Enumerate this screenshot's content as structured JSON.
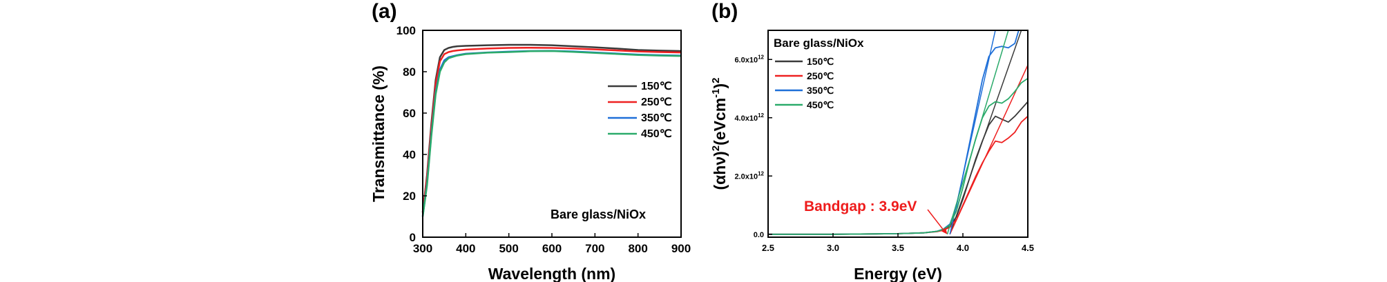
{
  "chart_data": [
    {
      "type": "line",
      "panel_label": "(a)",
      "xlabel": "Wavelength (nm)",
      "ylabel": "Transmittance (%)",
      "xlim": [
        300,
        900
      ],
      "ylim": [
        0,
        100
      ],
      "x_ticks": [
        300,
        400,
        500,
        600,
        700,
        800,
        900
      ],
      "y_ticks": [
        0,
        20,
        40,
        60,
        80,
        100
      ],
      "grid": false,
      "legend_position": "right",
      "annotation": "Bare glass/NiOx",
      "series": [
        {
          "name": "150℃",
          "color": "#3a3a3a",
          "x": [
            300,
            310,
            320,
            330,
            340,
            350,
            360,
            370,
            380,
            400,
            450,
            500,
            550,
            600,
            650,
            700,
            750,
            800,
            850,
            900
          ],
          "y": [
            12,
            30,
            55,
            76,
            87,
            90.5,
            91.5,
            92,
            92.3,
            92.5,
            92.8,
            93,
            93,
            92.8,
            92.3,
            91.8,
            91.2,
            90.5,
            90.2,
            90
          ]
        },
        {
          "name": "250℃",
          "color": "#ee2020",
          "x": [
            300,
            310,
            320,
            330,
            340,
            350,
            360,
            370,
            380,
            400,
            450,
            500,
            550,
            600,
            650,
            700,
            750,
            800,
            850,
            900
          ],
          "y": [
            12,
            29,
            53,
            74,
            85,
            88.5,
            89.5,
            90,
            90.3,
            90.7,
            91.2,
            91.5,
            91.6,
            91.5,
            91.2,
            90.8,
            90.3,
            89.8,
            89.5,
            89.3
          ]
        },
        {
          "name": "350℃",
          "color": "#1e6fd8",
          "x": [
            300,
            310,
            320,
            330,
            340,
            350,
            360,
            370,
            380,
            400,
            450,
            500,
            550,
            600,
            650,
            700,
            750,
            800,
            850,
            900
          ],
          "y": [
            10,
            26,
            50,
            70,
            81,
            85.5,
            87,
            87.5,
            88,
            88.7,
            89.3,
            89.7,
            90,
            90.1,
            89.8,
            89.3,
            88.8,
            88.3,
            88,
            87.8
          ]
        },
        {
          "name": "450℃",
          "color": "#2aaa6a",
          "x": [
            300,
            310,
            320,
            330,
            340,
            350,
            360,
            370,
            380,
            400,
            450,
            500,
            550,
            600,
            650,
            700,
            750,
            800,
            850,
            900
          ],
          "y": [
            10,
            25,
            49,
            69,
            80,
            84.5,
            86.5,
            87.2,
            87.8,
            88.5,
            89.2,
            89.5,
            89.9,
            90,
            89.6,
            89.1,
            88.6,
            88.1,
            87.8,
            87.6
          ]
        }
      ]
    },
    {
      "type": "line",
      "panel_label": "(b)",
      "xlabel": "Energy (eV)",
      "ylabel": "(αhν)²(eVcm⁻¹)²",
      "ylabel_parts": {
        "a": "(αhν)",
        "b": "2",
        "c": "(eVcm",
        "d": "-1",
        "e": ")",
        "f": "2"
      },
      "xlim": [
        2.5,
        4.5
      ],
      "ylim": [
        -100000000000.0,
        7000000000000.0
      ],
      "x_ticks": [
        2.5,
        3.0,
        3.5,
        4.0,
        4.5
      ],
      "y_ticks": [
        0,
        2000000000000.0,
        4000000000000.0,
        6000000000000.0
      ],
      "y_tick_labels": [
        {
          "value": 0,
          "base": "0.0",
          "exp": ""
        },
        {
          "value": 2000000000000.0,
          "base": "2.0x10",
          "exp": "12"
        },
        {
          "value": 4000000000000.0,
          "base": "4.0x10",
          "exp": "12"
        },
        {
          "value": 6000000000000.0,
          "base": "6.0x10",
          "exp": "12"
        }
      ],
      "grid": false,
      "legend_position": "top-left",
      "legend_title": "Bare glass/NiOx",
      "annotation": "Bandgap : 3.9eV",
      "annotation_color": "#ee1c1c",
      "annotation_target": [
        3.88,
        0.0
      ],
      "series": [
        {
          "name": "150℃",
          "color": "#3a3a3a",
          "x": [
            2.5,
            3.0,
            3.5,
            3.7,
            3.8,
            3.85,
            3.9,
            3.95,
            4.0,
            4.05,
            4.1,
            4.15,
            4.2,
            4.25,
            4.3,
            4.35,
            4.4,
            4.45,
            4.5
          ],
          "y": [
            0,
            0,
            20000000000.0,
            50000000000.0,
            100000000000.0,
            160000000000.0,
            280000000000.0,
            600000000000.0,
            1200000000000.0,
            1900000000000.0,
            2600000000000.0,
            3200000000000.0,
            3750000000000.0,
            4050000000000.0,
            3950000000000.0,
            3850000000000.0,
            4050000000000.0,
            4300000000000.0,
            4550000000000.0
          ],
          "fit_line": {
            "x": [
              3.9,
              4.45
            ],
            "y": [
              0,
              7000000000000.0
            ]
          }
        },
        {
          "name": "250℃",
          "color": "#ee2020",
          "x": [
            2.5,
            3.0,
            3.5,
            3.7,
            3.8,
            3.85,
            3.9,
            3.95,
            4.0,
            4.05,
            4.1,
            4.15,
            4.2,
            4.25,
            4.3,
            4.35,
            4.4,
            4.45,
            4.5
          ],
          "y": [
            0,
            0,
            20000000000.0,
            50000000000.0,
            90000000000.0,
            140000000000.0,
            240000000000.0,
            500000000000.0,
            1000000000000.0,
            1500000000000.0,
            2000000000000.0,
            2450000000000.0,
            2850000000000.0,
            3200000000000.0,
            3150000000000.0,
            3300000000000.0,
            3500000000000.0,
            3850000000000.0,
            4050000000000.0
          ],
          "fit_line": {
            "x": [
              3.9,
              4.52
            ],
            "y": [
              0,
              6000000000000.0
            ]
          }
        },
        {
          "name": "350℃",
          "color": "#1e6fd8",
          "x": [
            2.5,
            3.0,
            3.5,
            3.7,
            3.8,
            3.85,
            3.9,
            3.95,
            4.0,
            4.05,
            4.1,
            4.15,
            4.2,
            4.25,
            4.3,
            4.35,
            4.4,
            4.43
          ],
          "y": [
            0,
            0,
            20000000000.0,
            50000000000.0,
            100000000000.0,
            180000000000.0,
            350000000000.0,
            950000000000.0,
            2000000000000.0,
            3100000000000.0,
            4200000000000.0,
            5300000000000.0,
            6100000000000.0,
            6400000000000.0,
            6450000000000.0,
            6400000000000.0,
            6550000000000.0,
            7000000000000.0
          ],
          "fit_line": {
            "x": [
              3.9,
              4.25
            ],
            "y": [
              0,
              7000000000000.0
            ]
          }
        },
        {
          "name": "450℃",
          "color": "#2aaa6a",
          "x": [
            2.5,
            3.0,
            3.5,
            3.7,
            3.8,
            3.85,
            3.9,
            3.95,
            4.0,
            4.05,
            4.1,
            4.15,
            4.2,
            4.25,
            4.3,
            4.35,
            4.4,
            4.45,
            4.5
          ],
          "y": [
            0,
            0,
            20000000000.0,
            50000000000.0,
            100000000000.0,
            170000000000.0,
            320000000000.0,
            800000000000.0,
            1600000000000.0,
            2500000000000.0,
            3300000000000.0,
            4000000000000.0,
            4400000000000.0,
            4550000000000.0,
            4500000000000.0,
            4650000000000.0,
            4900000000000.0,
            5200000000000.0,
            5350000000000.0
          ],
          "fit_line": {
            "x": [
              3.88,
              4.35
            ],
            "y": [
              0,
              7000000000000.0
            ]
          }
        }
      ]
    }
  ]
}
